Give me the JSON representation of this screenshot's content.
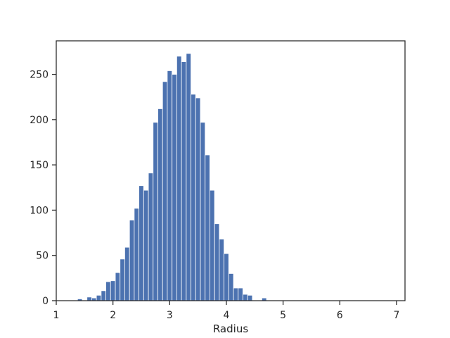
{
  "chart_data": {
    "type": "bar",
    "title": "",
    "xlabel": "Radius",
    "ylabel": "",
    "xlim": [
      1,
      7.15
    ],
    "ylim": [
      0,
      287
    ],
    "x_ticks": [
      1,
      2,
      3,
      4,
      5,
      6,
      7
    ],
    "y_ticks": [
      0,
      50,
      100,
      150,
      200,
      250
    ],
    "grid": false,
    "legend": "none",
    "bar_color": "#4c72b0",
    "bin_width": 0.0833,
    "bins": [
      {
        "x_start": 1.375,
        "count": 2
      },
      {
        "x_start": 1.458,
        "count": 0
      },
      {
        "x_start": 1.542,
        "count": 4
      },
      {
        "x_start": 1.625,
        "count": 3
      },
      {
        "x_start": 1.708,
        "count": 6
      },
      {
        "x_start": 1.792,
        "count": 11
      },
      {
        "x_start": 1.875,
        "count": 21
      },
      {
        "x_start": 1.958,
        "count": 22
      },
      {
        "x_start": 2.042,
        "count": 31
      },
      {
        "x_start": 2.125,
        "count": 46
      },
      {
        "x_start": 2.208,
        "count": 59
      },
      {
        "x_start": 2.292,
        "count": 89
      },
      {
        "x_start": 2.375,
        "count": 102
      },
      {
        "x_start": 2.458,
        "count": 127
      },
      {
        "x_start": 2.542,
        "count": 122
      },
      {
        "x_start": 2.625,
        "count": 141
      },
      {
        "x_start": 2.708,
        "count": 197
      },
      {
        "x_start": 2.792,
        "count": 212
      },
      {
        "x_start": 2.875,
        "count": 242
      },
      {
        "x_start": 2.958,
        "count": 254
      },
      {
        "x_start": 3.042,
        "count": 250
      },
      {
        "x_start": 3.125,
        "count": 270
      },
      {
        "x_start": 3.208,
        "count": 264
      },
      {
        "x_start": 3.292,
        "count": 273
      },
      {
        "x_start": 3.375,
        "count": 228
      },
      {
        "x_start": 3.458,
        "count": 224
      },
      {
        "x_start": 3.542,
        "count": 197
      },
      {
        "x_start": 3.625,
        "count": 161
      },
      {
        "x_start": 3.708,
        "count": 122
      },
      {
        "x_start": 3.792,
        "count": 85
      },
      {
        "x_start": 3.875,
        "count": 68
      },
      {
        "x_start": 3.958,
        "count": 52
      },
      {
        "x_start": 4.042,
        "count": 30
      },
      {
        "x_start": 4.125,
        "count": 14
      },
      {
        "x_start": 4.208,
        "count": 14
      },
      {
        "x_start": 4.292,
        "count": 7
      },
      {
        "x_start": 4.375,
        "count": 6
      },
      {
        "x_start": 4.458,
        "count": 0
      },
      {
        "x_start": 4.542,
        "count": 0
      },
      {
        "x_start": 4.625,
        "count": 3
      }
    ]
  }
}
